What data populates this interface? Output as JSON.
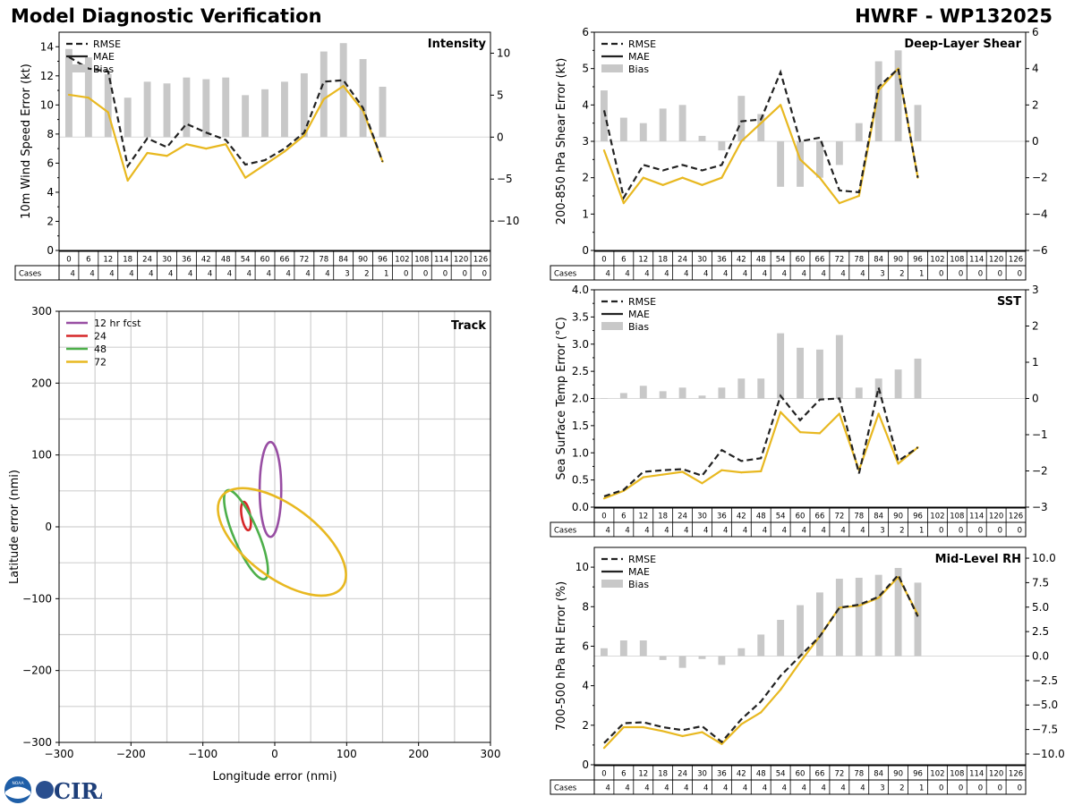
{
  "figure": {
    "title_left": "Model Diagnostic Verification",
    "title_right": "HWRF - WP132025"
  },
  "logos": {
    "noaa": "NOAA",
    "cira": "CIRA"
  },
  "colors": {
    "rmse": "#222222",
    "mae_blue": "#3a7db5",
    "mae_gold": "#e8b820",
    "bias": "#c8c8c8",
    "grid": "#d0d0d0",
    "track_12": "#984ea3",
    "track_24": "#d62728",
    "track_48": "#4daf4a",
    "track_72": "#e8b820"
  },
  "legend_labels": [
    "RMSE",
    "MAE",
    "Bias"
  ],
  "table": {
    "cases_label": "Cases",
    "hours": [
      "0",
      "6",
      "12",
      "18",
      "24",
      "30",
      "36",
      "42",
      "48",
      "54",
      "60",
      "66",
      "72",
      "78",
      "84",
      "90",
      "96",
      "102",
      "108",
      "114",
      "120",
      "126"
    ],
    "cases": [
      "4",
      "4",
      "4",
      "4",
      "4",
      "4",
      "4",
      "4",
      "4",
      "4",
      "4",
      "4",
      "4",
      "4",
      "3",
      "2",
      "1",
      "0",
      "0",
      "0",
      "0",
      "0"
    ]
  },
  "chart_data": [
    {
      "id": "intensity",
      "type": "line",
      "title": "Intensity",
      "ylabel": "10m Wind Speed Error (kt)",
      "ylim": [
        0,
        15
      ],
      "yticks": [
        0,
        2,
        4,
        6,
        8,
        10,
        12,
        14
      ],
      "y2lim": [
        -13.5,
        12.5
      ],
      "y2ticks": [
        -10,
        -5,
        0,
        5,
        10
      ],
      "x": [
        0,
        6,
        12,
        18,
        24,
        30,
        36,
        42,
        48,
        54,
        60,
        66,
        72,
        78,
        84,
        90,
        96
      ],
      "rmse": [
        13.3,
        12.5,
        12.3,
        5.8,
        7.7,
        7.1,
        8.7,
        8.1,
        7.6,
        5.9,
        6.2,
        7.0,
        8.1,
        11.6,
        11.7,
        9.8,
        6.1
      ],
      "mae": [
        10.7,
        10.5,
        9.5,
        4.8,
        6.7,
        6.5,
        7.3,
        7.0,
        7.3,
        5.0,
        5.9,
        6.8,
        7.9,
        10.4,
        11.3,
        9.6,
        6.1
      ],
      "bias": [
        10.5,
        9.5,
        7.5,
        4.7,
        6.6,
        6.4,
        7.1,
        6.9,
        7.1,
        5.0,
        5.7,
        6.6,
        7.6,
        10.2,
        11.2,
        9.3,
        6.0
      ]
    },
    {
      "id": "shear",
      "type": "line",
      "title": "Deep-Layer Shear",
      "ylabel": "200-850 hPa Shear Error (kt)",
      "ylim": [
        0,
        6
      ],
      "yticks": [
        0,
        1,
        2,
        3,
        4,
        5,
        6
      ],
      "y2lim": [
        -6,
        6
      ],
      "y2ticks": [
        -6,
        -4,
        -2,
        0,
        2,
        4,
        6
      ],
      "x": [
        0,
        6,
        12,
        18,
        24,
        30,
        36,
        42,
        48,
        54,
        60,
        66,
        72,
        78,
        84,
        90,
        96
      ],
      "rmse": [
        3.85,
        1.45,
        2.35,
        2.2,
        2.35,
        2.2,
        2.35,
        3.55,
        3.6,
        4.9,
        3.0,
        3.1,
        1.65,
        1.6,
        4.5,
        5.0,
        2.0
      ],
      "mae": [
        2.75,
        1.3,
        2.0,
        1.8,
        2.0,
        1.8,
        2.0,
        3.0,
        3.5,
        4.0,
        2.5,
        2.0,
        1.3,
        1.5,
        4.4,
        5.0,
        2.0
      ],
      "bias": [
        2.8,
        1.3,
        1.0,
        1.8,
        2.0,
        0.3,
        -0.5,
        2.5,
        1.5,
        -2.5,
        -2.5,
        -2.0,
        -1.3,
        1.0,
        4.4,
        5.0,
        2.0
      ]
    },
    {
      "id": "sst",
      "type": "line",
      "title": "SST",
      "ylabel": "Sea Surface Temp Error (°C)",
      "ylim": [
        0,
        4
      ],
      "yticks": [
        0.0,
        0.5,
        1.0,
        1.5,
        2.0,
        2.5,
        3.0,
        3.5,
        4.0
      ],
      "y2lim": [
        -3,
        3
      ],
      "y2ticks": [
        -3,
        -2,
        -1,
        0,
        1,
        2,
        3
      ],
      "x": [
        0,
        6,
        12,
        18,
        24,
        30,
        36,
        42,
        48,
        54,
        60,
        66,
        72,
        78,
        84,
        90,
        96
      ],
      "rmse": [
        0.2,
        0.32,
        0.65,
        0.68,
        0.7,
        0.58,
        1.05,
        0.85,
        0.9,
        2.05,
        1.6,
        1.98,
        2.0,
        0.62,
        2.2,
        0.85,
        1.1
      ],
      "mae": [
        0.16,
        0.3,
        0.55,
        0.6,
        0.65,
        0.44,
        0.68,
        0.64,
        0.66,
        1.75,
        1.38,
        1.36,
        1.72,
        0.68,
        1.72,
        0.8,
        1.1
      ],
      "bias": [
        0.0,
        0.15,
        0.35,
        0.2,
        0.3,
        0.08,
        0.3,
        0.55,
        0.55,
        1.8,
        1.4,
        1.35,
        1.75,
        0.3,
        0.55,
        0.8,
        1.1
      ]
    },
    {
      "id": "rh",
      "type": "line",
      "title": "Mid-Level RH",
      "ylabel": "700-500 hPa RH Error (%)",
      "ylim": [
        0,
        11
      ],
      "yticks": [
        0,
        2,
        4,
        6,
        8,
        10
      ],
      "y2lim": [
        -11.1,
        11.1
      ],
      "y2ticks": [
        -10.0,
        -7.5,
        -5.0,
        -2.5,
        0.0,
        2.5,
        5.0,
        7.5,
        10.0
      ],
      "x": [
        0,
        6,
        12,
        18,
        24,
        30,
        36,
        42,
        48,
        54,
        60,
        66,
        72,
        78,
        84,
        90,
        96
      ],
      "rmse": [
        1.1,
        2.1,
        2.15,
        1.9,
        1.75,
        1.95,
        1.15,
        2.3,
        3.2,
        4.5,
        5.5,
        6.5,
        7.95,
        8.1,
        8.5,
        9.6,
        7.5
      ],
      "mae": [
        0.85,
        1.9,
        1.9,
        1.7,
        1.45,
        1.65,
        1.05,
        2.05,
        2.65,
        3.8,
        5.2,
        6.5,
        7.95,
        8.05,
        8.45,
        9.5,
        7.6
      ],
      "bias": [
        0.8,
        1.6,
        1.6,
        -0.4,
        -1.2,
        -0.3,
        -0.9,
        0.8,
        2.2,
        3.7,
        5.2,
        6.5,
        7.9,
        8.0,
        8.3,
        9.0,
        7.5
      ]
    },
    {
      "id": "track",
      "type": "scatter",
      "title": "Track",
      "xlabel": "Longitude error (nmi)",
      "ylabel": "Latitude error (nmi)",
      "xlim": [
        -300,
        300
      ],
      "ylim": [
        -300,
        300
      ],
      "xticks": [
        -300,
        -200,
        -100,
        0,
        100,
        200,
        300
      ],
      "yticks": [
        -300,
        -200,
        -100,
        0,
        100,
        200,
        300
      ],
      "ellipses": [
        {
          "label": "12 hr fcst",
          "color": "#984ea3",
          "cx": -6,
          "cy": 52,
          "rx": 15,
          "ry": 66,
          "angle": 0
        },
        {
          "label": "24",
          "color": "#d62728",
          "cx": -40,
          "cy": 15,
          "rx": 6,
          "ry": 20,
          "angle": -10
        },
        {
          "label": "48",
          "color": "#4daf4a",
          "cx": -40,
          "cy": -11,
          "rx": 17,
          "ry": 67,
          "angle": -23
        },
        {
          "label": "72",
          "color": "#e8b820",
          "cx": 10,
          "cy": -21,
          "rx": 50,
          "ry": 105,
          "angle": -53
        }
      ]
    }
  ]
}
